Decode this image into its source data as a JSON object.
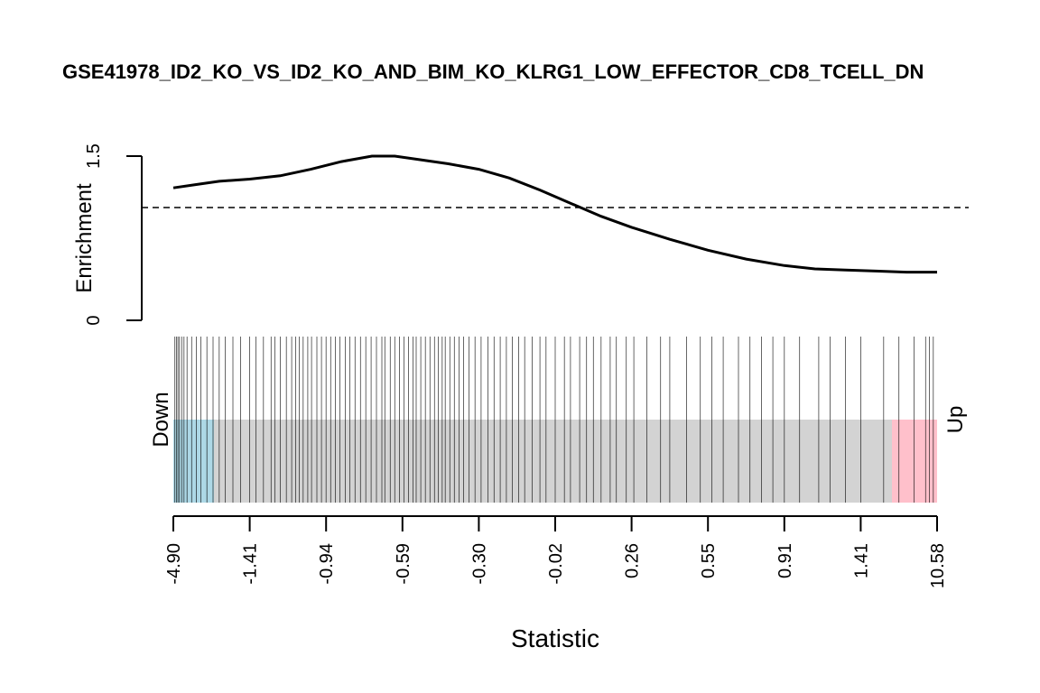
{
  "chart_data": {
    "type": "line",
    "title": "GSE41978_ID2_KO_VS_ID2_KO_AND_BIM_KO_KLRG1_LOW_EFFECTOR_CD8_TCELL_DN",
    "ylabel": "Enrichment",
    "xlabel": "Statistic",
    "ylim": [
      0,
      1.5
    ],
    "y_ticks": [
      "0",
      "1.5"
    ],
    "reference_line": 1.0,
    "x_ticks": [
      "-4.90",
      "-1.41",
      "-0.94",
      "-0.59",
      "-0.30",
      "-0.02",
      "0.26",
      "0.55",
      "0.91",
      "1.41",
      "10.58"
    ],
    "down_label": "Down",
    "up_label": "Up",
    "rank_range": [
      0,
      1
    ],
    "enrichment_curve": {
      "x": [
        0.0,
        0.03,
        0.06,
        0.1,
        0.14,
        0.18,
        0.22,
        0.26,
        0.29,
        0.32,
        0.36,
        0.4,
        0.44,
        0.48,
        0.52,
        0.56,
        0.6,
        0.65,
        0.7,
        0.75,
        0.8,
        0.84,
        0.88,
        0.92,
        0.96,
        1.0
      ],
      "y": [
        1.21,
        1.24,
        1.27,
        1.29,
        1.32,
        1.38,
        1.45,
        1.5,
        1.5,
        1.47,
        1.43,
        1.38,
        1.3,
        1.19,
        1.07,
        0.95,
        0.85,
        0.74,
        0.64,
        0.56,
        0.5,
        0.47,
        0.46,
        0.45,
        0.44,
        0.44
      ]
    },
    "barcode_ranks": [
      0.002,
      0.004,
      0.006,
      0.008,
      0.011,
      0.014,
      0.018,
      0.024,
      0.03,
      0.036,
      0.044,
      0.052,
      0.06,
      0.068,
      0.078,
      0.088,
      0.1,
      0.108,
      0.118,
      0.128,
      0.133,
      0.14,
      0.148,
      0.155,
      0.16,
      0.165,
      0.17,
      0.176,
      0.181,
      0.188,
      0.194,
      0.2,
      0.206,
      0.212,
      0.218,
      0.225,
      0.231,
      0.238,
      0.245,
      0.252,
      0.259,
      0.266,
      0.273,
      0.277,
      0.284,
      0.29,
      0.296,
      0.302,
      0.308,
      0.314,
      0.318,
      0.324,
      0.33,
      0.336,
      0.342,
      0.347,
      0.352,
      0.356,
      0.362,
      0.368,
      0.374,
      0.38,
      0.387,
      0.395,
      0.403,
      0.412,
      0.42,
      0.428,
      0.436,
      0.444,
      0.452,
      0.46,
      0.47,
      0.48,
      0.488,
      0.5,
      0.512,
      0.52,
      0.532,
      0.541,
      0.55,
      0.56,
      0.572,
      0.58,
      0.593,
      0.603,
      0.62,
      0.638,
      0.65,
      0.672,
      0.69,
      0.705,
      0.72,
      0.74,
      0.755,
      0.77,
      0.785,
      0.8,
      0.82,
      0.845,
      0.86,
      0.88,
      0.9,
      0.93,
      0.95,
      0.97,
      0.985,
      0.99,
      0.995
    ]
  }
}
